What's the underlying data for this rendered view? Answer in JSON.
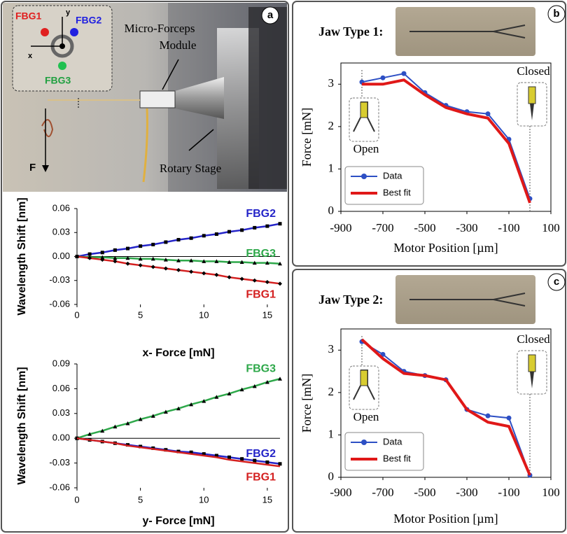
{
  "photo": {
    "panel": "a",
    "labels": {
      "fbg1": "FBG1",
      "fbg2": "FBG2",
      "fbg3": "FBG3",
      "x_axis": "x",
      "y_axis": "y",
      "module_line1": "Micro-Forceps",
      "module_line2": "Module",
      "stage": "Rotary Stage",
      "force": "F"
    }
  },
  "chart_data": [
    {
      "type": "line",
      "x_label": "x- Force [mN]",
      "y_label": "Wavelength Shift [nm]",
      "xlim": [
        0,
        16
      ],
      "xticks": [
        0,
        5,
        10,
        15
      ],
      "ylim": [
        -0.06,
        0.06
      ],
      "yticks": [
        -0.06,
        -0.03,
        {
          "value": 0,
          "label": "0.00"
        },
        0.03,
        0.06
      ],
      "x": [
        0,
        1,
        2,
        3,
        4,
        5,
        6,
        7,
        8,
        9,
        10,
        11,
        12,
        13,
        14,
        15,
        16
      ],
      "series": [
        {
          "name": "FBG2",
          "color": "#2424c8",
          "marker": "square",
          "values": [
            0,
            0.003,
            0.005,
            0.008,
            0.01,
            0.013,
            0.015,
            0.018,
            0.021,
            0.023,
            0.026,
            0.028,
            0.031,
            0.033,
            0.036,
            0.038,
            0.041
          ]
        },
        {
          "name": "FBG3",
          "color": "#2ea84a",
          "marker": "triangle",
          "values": [
            0,
            -0.001,
            -0.001,
            -0.002,
            -0.002,
            -0.003,
            -0.003,
            -0.004,
            -0.005,
            -0.005,
            -0.006,
            -0.006,
            -0.007,
            -0.007,
            -0.008,
            -0.008,
            -0.009
          ]
        },
        {
          "name": "FBG1",
          "color": "#d42020",
          "marker": "diamond",
          "values": [
            0,
            -0.002,
            -0.004,
            -0.006,
            -0.009,
            -0.011,
            -0.013,
            -0.015,
            -0.017,
            -0.019,
            -0.021,
            -0.023,
            -0.026,
            -0.028,
            -0.03,
            -0.032,
            -0.034
          ]
        }
      ]
    },
    {
      "type": "line",
      "x_label": "y- Force [mN]",
      "y_label": "Wavelength Shift [nm]",
      "xlim": [
        0,
        16
      ],
      "xticks": [
        0,
        5,
        10,
        15
      ],
      "ylim": [
        -0.06,
        0.09
      ],
      "yticks": [
        -0.06,
        -0.03,
        {
          "value": 0,
          "label": "0.00"
        },
        0.03,
        0.06,
        0.09
      ],
      "x": [
        0,
        1,
        2,
        3,
        4,
        5,
        6,
        7,
        8,
        9,
        10,
        11,
        12,
        13,
        14,
        15,
        16
      ],
      "series": [
        {
          "name": "FBG3",
          "color": "#2ea84a",
          "marker": "triangle",
          "values": [
            0,
            0.005,
            0.009,
            0.014,
            0.018,
            0.023,
            0.027,
            0.032,
            0.036,
            0.041,
            0.045,
            0.05,
            0.054,
            0.059,
            0.063,
            0.068,
            0.072
          ]
        },
        {
          "name": "FBG2",
          "color": "#2424c8",
          "marker": "square",
          "values": [
            0,
            -0.002,
            -0.004,
            -0.006,
            -0.008,
            -0.01,
            -0.012,
            -0.014,
            -0.016,
            -0.017,
            -0.019,
            -0.021,
            -0.023,
            -0.025,
            -0.027,
            -0.029,
            -0.031
          ]
        },
        {
          "name": "FBG1",
          "color": "#d42020",
          "marker": "none",
          "values": [
            0,
            -0.002,
            -0.004,
            -0.006,
            -0.009,
            -0.011,
            -0.013,
            -0.015,
            -0.017,
            -0.019,
            -0.021,
            -0.023,
            -0.026,
            -0.028,
            -0.03,
            -0.032,
            -0.034
          ]
        }
      ]
    },
    {
      "type": "line",
      "panel": "b",
      "title": "Jaw Type 1:",
      "x_label": "Motor Position [µm]",
      "y_label": "Force [mN]",
      "open_label": "Open",
      "closed_label": "Closed",
      "legend": "lower left",
      "xlim": [
        -900,
        100
      ],
      "xticks": [
        -900,
        -700,
        -500,
        -300,
        -100,
        100
      ],
      "ylim": [
        0,
        3.5
      ],
      "yticks": [
        0,
        1,
        2,
        3
      ],
      "x": [
        -800,
        -700,
        -600,
        -500,
        -400,
        -300,
        -200,
        -100,
        0
      ],
      "series": [
        {
          "name": "Data",
          "color": "#2d4fc4",
          "values": [
            3.05,
            3.15,
            3.25,
            2.8,
            2.5,
            2.35,
            2.3,
            1.7,
            0.3
          ]
        },
        {
          "name": "Best fit",
          "color": "#e01818",
          "values": [
            3.0,
            3.0,
            3.1,
            2.75,
            2.45,
            2.3,
            2.2,
            1.6,
            0.2
          ]
        }
      ]
    },
    {
      "type": "line",
      "panel": "c",
      "title": "Jaw Type 2:",
      "x_label": "Motor Position [µm]",
      "y_label": "Force [mN]",
      "open_label": "Open",
      "closed_label": "Closed",
      "legend": "lower left",
      "xlim": [
        -900,
        100
      ],
      "xticks": [
        -900,
        -700,
        -500,
        -300,
        -100,
        100
      ],
      "ylim": [
        0,
        3.5
      ],
      "yticks": [
        0,
        1,
        2,
        3
      ],
      "x": [
        -800,
        -700,
        -600,
        -500,
        -400,
        -300,
        -200,
        -100,
        0
      ],
      "series": [
        {
          "name": "Data",
          "color": "#2d4fc4",
          "values": [
            3.2,
            2.9,
            2.5,
            2.4,
            2.3,
            1.6,
            1.45,
            1.4,
            0.05
          ]
        },
        {
          "name": "Best fit",
          "color": "#e01818",
          "values": [
            3.25,
            2.8,
            2.45,
            2.4,
            2.3,
            1.6,
            1.3,
            1.2,
            0.05
          ]
        }
      ]
    }
  ]
}
